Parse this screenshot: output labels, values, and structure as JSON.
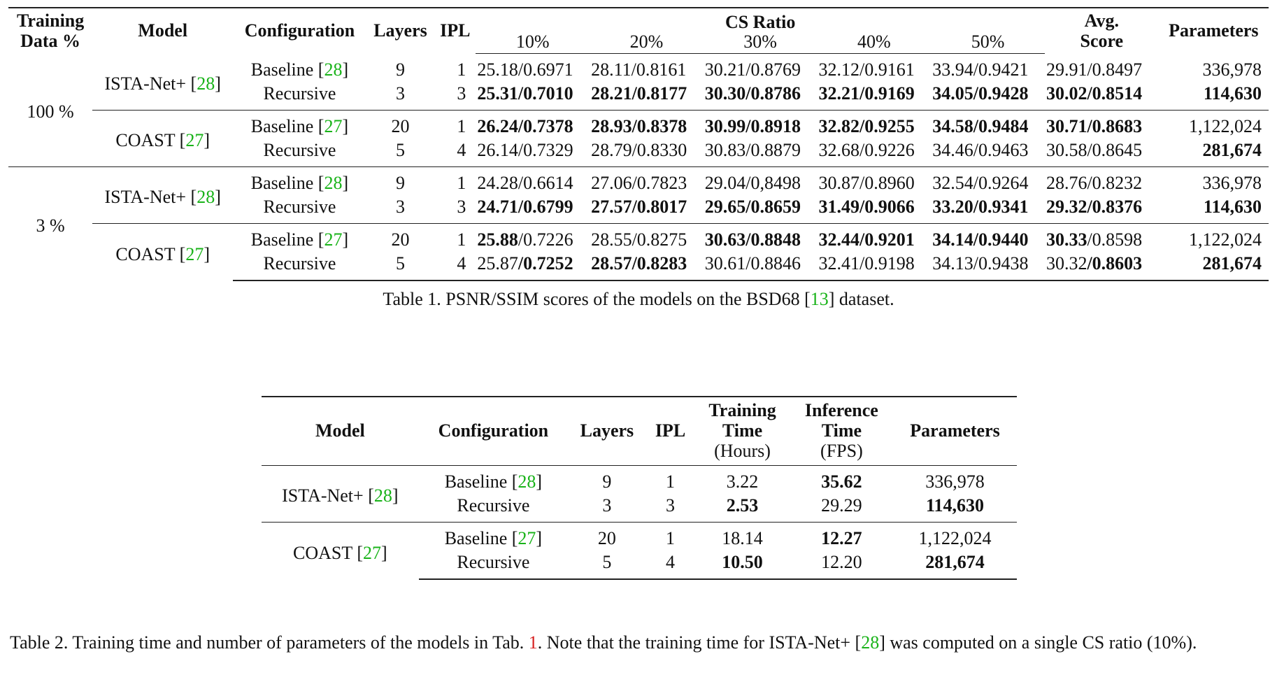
{
  "table1": {
    "headers": {
      "training_data": "Training Data %",
      "training_line1": "Training",
      "training_line2": "Data %",
      "model": "Model",
      "configuration": "Configuration",
      "layers": "Layers",
      "ipl": "IPL",
      "cs_ratio": "CS Ratio",
      "ratios": [
        "10%",
        "20%",
        "30%",
        "40%",
        "50%"
      ],
      "avg_line1": "Avg.",
      "avg_line2": "Score",
      "parameters": "Parameters"
    },
    "blocks": [
      {
        "training_pct": "100 %",
        "groups": [
          {
            "model": "ISTA-Net+",
            "cite": "28",
            "rows": [
              {
                "config": "Baseline",
                "cite": "28",
                "layers": "9",
                "ipl": "1",
                "scores": [
                  {
                    "psnr": "25.18",
                    "ssim": "0.6971",
                    "bp": false,
                    "bs": false
                  },
                  {
                    "psnr": "28.11",
                    "ssim": "0.8161",
                    "bp": false,
                    "bs": false
                  },
                  {
                    "psnr": "30.21",
                    "ssim": "0.8769",
                    "bp": false,
                    "bs": false
                  },
                  {
                    "psnr": "32.12",
                    "ssim": "0.9161",
                    "bp": false,
                    "bs": false
                  },
                  {
                    "psnr": "33.94",
                    "ssim": "0.9421",
                    "bp": false,
                    "bs": false
                  },
                  {
                    "psnr": "29.91",
                    "ssim": "0.8497",
                    "bp": false,
                    "bs": false
                  }
                ],
                "params": "336,978",
                "bold_params": false
              },
              {
                "config": "Recursive",
                "cite": "",
                "layers": "3",
                "ipl": "3",
                "scores": [
                  {
                    "psnr": "25.31",
                    "ssim": "0.7010",
                    "bp": true,
                    "bs": true
                  },
                  {
                    "psnr": "28.21",
                    "ssim": "0.8177",
                    "bp": true,
                    "bs": true
                  },
                  {
                    "psnr": "30.30",
                    "ssim": "0.8786",
                    "bp": true,
                    "bs": true
                  },
                  {
                    "psnr": "32.21",
                    "ssim": "0.9169",
                    "bp": true,
                    "bs": true
                  },
                  {
                    "psnr": "34.05",
                    "ssim": "0.9428",
                    "bp": true,
                    "bs": true
                  },
                  {
                    "psnr": "30.02",
                    "ssim": "0.8514",
                    "bp": true,
                    "bs": true
                  }
                ],
                "params": "114,630",
                "bold_params": true
              }
            ]
          },
          {
            "model": "COAST",
            "cite": "27",
            "rows": [
              {
                "config": "Baseline",
                "cite": "27",
                "layers": "20",
                "ipl": "1",
                "scores": [
                  {
                    "psnr": "26.24",
                    "ssim": "0.7378",
                    "bp": true,
                    "bs": true
                  },
                  {
                    "psnr": "28.93",
                    "ssim": "0.8378",
                    "bp": true,
                    "bs": true
                  },
                  {
                    "psnr": "30.99",
                    "ssim": "0.8918",
                    "bp": true,
                    "bs": true
                  },
                  {
                    "psnr": "32.82",
                    "ssim": "0.9255",
                    "bp": true,
                    "bs": true
                  },
                  {
                    "psnr": "34.58",
                    "ssim": "0.9484",
                    "bp": true,
                    "bs": true
                  },
                  {
                    "psnr": "30.71",
                    "ssim": "0.8683",
                    "bp": true,
                    "bs": true
                  }
                ],
                "params": "1,122,024",
                "bold_params": false
              },
              {
                "config": "Recursive",
                "cite": "",
                "layers": "5",
                "ipl": "4",
                "scores": [
                  {
                    "psnr": "26.14",
                    "ssim": "0.7329",
                    "bp": false,
                    "bs": false
                  },
                  {
                    "psnr": "28.79",
                    "ssim": "0.8330",
                    "bp": false,
                    "bs": false
                  },
                  {
                    "psnr": "30.83",
                    "ssim": "0.8879",
                    "bp": false,
                    "bs": false
                  },
                  {
                    "psnr": "32.68",
                    "ssim": "0.9226",
                    "bp": false,
                    "bs": false
                  },
                  {
                    "psnr": "34.46",
                    "ssim": "0.9463",
                    "bp": false,
                    "bs": false
                  },
                  {
                    "psnr": "30.58",
                    "ssim": "0.8645",
                    "bp": false,
                    "bs": false
                  }
                ],
                "params": "281,674",
                "bold_params": true
              }
            ]
          }
        ]
      },
      {
        "training_pct": "3 %",
        "groups": [
          {
            "model": "ISTA-Net+",
            "cite": "28",
            "rows": [
              {
                "config": "Baseline",
                "cite": "28",
                "layers": "9",
                "ipl": "1",
                "scores": [
                  {
                    "psnr": "24.28",
                    "ssim": "0.6614",
                    "bp": false,
                    "bs": false
                  },
                  {
                    "psnr": "27.06",
                    "ssim": "0.7823",
                    "bp": false,
                    "bs": false
                  },
                  {
                    "psnr": "29.04",
                    "ssim": "0,8498",
                    "bp": false,
                    "bs": false
                  },
                  {
                    "psnr": "30.87",
                    "ssim": "0.8960",
                    "bp": false,
                    "bs": false
                  },
                  {
                    "psnr": "32.54",
                    "ssim": "0.9264",
                    "bp": false,
                    "bs": false
                  },
                  {
                    "psnr": "28.76",
                    "ssim": "0.8232",
                    "bp": false,
                    "bs": false
                  }
                ],
                "params": "336,978",
                "bold_params": false
              },
              {
                "config": "Recursive",
                "cite": "",
                "layers": "3",
                "ipl": "3",
                "scores": [
                  {
                    "psnr": "24.71",
                    "ssim": "0.6799",
                    "bp": true,
                    "bs": true
                  },
                  {
                    "psnr": "27.57",
                    "ssim": "0.8017",
                    "bp": true,
                    "bs": true
                  },
                  {
                    "psnr": "29.65",
                    "ssim": "0.8659",
                    "bp": true,
                    "bs": true
                  },
                  {
                    "psnr": "31.49",
                    "ssim": "0.9066",
                    "bp": true,
                    "bs": true
                  },
                  {
                    "psnr": "33.20",
                    "ssim": "0.9341",
                    "bp": true,
                    "bs": true
                  },
                  {
                    "psnr": "29.32",
                    "ssim": "0.8376",
                    "bp": true,
                    "bs": true
                  }
                ],
                "params": "114,630",
                "bold_params": true
              }
            ]
          },
          {
            "model": "COAST",
            "cite": "27",
            "rows": [
              {
                "config": "Baseline",
                "cite": "27",
                "layers": "20",
                "ipl": "1",
                "scores": [
                  {
                    "psnr": "25.88",
                    "ssim": "0.7226",
                    "bp": true,
                    "bs": false
                  },
                  {
                    "psnr": "28.55",
                    "ssim": "0.8275",
                    "bp": false,
                    "bs": false
                  },
                  {
                    "psnr": "30.63",
                    "ssim": "0.8848",
                    "bp": true,
                    "bs": true
                  },
                  {
                    "psnr": "32.44",
                    "ssim": "0.9201",
                    "bp": true,
                    "bs": true
                  },
                  {
                    "psnr": "34.14",
                    "ssim": "0.9440",
                    "bp": true,
                    "bs": true
                  },
                  {
                    "psnr": "30.33",
                    "ssim": "0.8598",
                    "bp": true,
                    "bs": false
                  }
                ],
                "params": "1,122,024",
                "bold_params": false
              },
              {
                "config": "Recursive",
                "cite": "",
                "layers": "5",
                "ipl": "4",
                "scores": [
                  {
                    "psnr": "25.87",
                    "ssim": "0.7252",
                    "bp": false,
                    "bs": true
                  },
                  {
                    "psnr": "28.57",
                    "ssim": "0.8283",
                    "bp": true,
                    "bs": true
                  },
                  {
                    "psnr": "30.61",
                    "ssim": "0.8846",
                    "bp": false,
                    "bs": false
                  },
                  {
                    "psnr": "32.41",
                    "ssim": "0.9198",
                    "bp": false,
                    "bs": false
                  },
                  {
                    "psnr": "34.13",
                    "ssim": "0.9438",
                    "bp": false,
                    "bs": false
                  },
                  {
                    "psnr": "30.32",
                    "ssim": "0.8603",
                    "bp": false,
                    "bs": true
                  }
                ],
                "params": "281,674",
                "bold_params": true
              }
            ]
          }
        ]
      }
    ],
    "caption": {
      "before": "Table 1. PSNR/SSIM scores of the models on the BSD68 [",
      "cite": "13",
      "after": "] dataset."
    }
  },
  "table2": {
    "headers": {
      "model": "Model",
      "configuration": "Configuration",
      "layers": "Layers",
      "ipl": "IPL",
      "train_l1": "Training",
      "train_l2": "Time",
      "train_l3": "(Hours)",
      "inf_l1": "Inference",
      "inf_l2": "Time",
      "inf_l3": "(FPS)",
      "parameters": "Parameters"
    },
    "groups": [
      {
        "model": "ISTA-Net+",
        "cite": "28",
        "rows": [
          {
            "config": "Baseline",
            "cite": "28",
            "layers": "9",
            "ipl": "1",
            "train": "3.22",
            "bold_train": false,
            "inference": "35.62",
            "bold_inf": true,
            "params": "336,978",
            "bold_params": false
          },
          {
            "config": "Recursive",
            "cite": "",
            "layers": "3",
            "ipl": "3",
            "train": "2.53",
            "bold_train": true,
            "inference": "29.29",
            "bold_inf": false,
            "params": "114,630",
            "bold_params": true
          }
        ]
      },
      {
        "model": "COAST",
        "cite": "27",
        "rows": [
          {
            "config": "Baseline",
            "cite": "27",
            "layers": "20",
            "ipl": "1",
            "train": "18.14",
            "bold_train": false,
            "inference": "12.27",
            "bold_inf": true,
            "params": "1,122,024",
            "bold_params": false
          },
          {
            "config": "Recursive",
            "cite": "",
            "layers": "5",
            "ipl": "4",
            "train": "10.50",
            "bold_train": true,
            "inference": "12.20",
            "bold_inf": false,
            "params": "281,674",
            "bold_params": true
          }
        ]
      }
    ],
    "caption": {
      "p1": "Table 2. Training time and number of parameters of the models in Tab. ",
      "ref": "1",
      "p2": ". Note that the training time for ISTA-Net+ [",
      "cite": "28",
      "p3": "] was computed on a single CS ratio (10%)."
    }
  },
  "colors": {
    "citation": "#19b319",
    "table_ref": "#d61f1f",
    "text": "#111111"
  }
}
